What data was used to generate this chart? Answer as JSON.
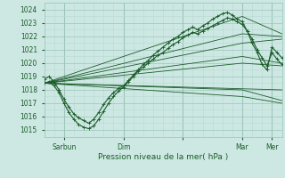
{
  "xlabel": "Pression niveau de la mer( hPa )",
  "bg_color": "#cde8e2",
  "grid_major_color": "#9dc4bc",
  "grid_minor_color": "#b8d8d2",
  "line_color": "#1a5c2a",
  "ylim": [
    1014.5,
    1024.5
  ],
  "xlim": [
    0,
    96
  ],
  "ytick_positions": [
    1015,
    1016,
    1017,
    1018,
    1019,
    1020,
    1021,
    1022,
    1023,
    1024
  ],
  "xtick_positions": [
    8,
    32,
    56,
    80,
    92
  ],
  "xtick_labels": [
    "Sarbun",
    "Dim",
    "",
    "Mar",
    "Mer"
  ],
  "day_vlines": [
    8,
    32,
    56,
    80,
    92
  ],
  "straight_lines": [
    {
      "x": [
        0,
        80,
        96
      ],
      "y": [
        1018.5,
        1023.5,
        1022.2
      ]
    },
    {
      "x": [
        0,
        80,
        96
      ],
      "y": [
        1018.5,
        1022.2,
        1022.0
      ]
    },
    {
      "x": [
        0,
        80,
        96
      ],
      "y": [
        1018.5,
        1021.5,
        1021.8
      ]
    },
    {
      "x": [
        0,
        80,
        96
      ],
      "y": [
        1018.5,
        1020.5,
        1020.0
      ]
    },
    {
      "x": [
        0,
        80,
        96
      ],
      "y": [
        1018.5,
        1020.0,
        1019.8
      ]
    },
    {
      "x": [
        0,
        96
      ],
      "y": [
        1018.5,
        1018.0
      ]
    },
    {
      "x": [
        0,
        80,
        96
      ],
      "y": [
        1018.5,
        1018.0,
        1017.2
      ]
    },
    {
      "x": [
        0,
        80,
        96
      ],
      "y": [
        1018.5,
        1017.5,
        1017.0
      ]
    }
  ],
  "squiggly1_x": [
    0,
    2,
    4,
    6,
    8,
    10,
    12,
    14,
    16,
    18,
    20,
    22,
    24,
    26,
    28,
    30,
    32,
    34,
    36,
    38,
    40,
    42,
    44,
    46,
    48,
    50,
    52,
    54,
    56,
    58,
    60,
    62,
    64,
    66,
    68,
    70,
    72,
    74,
    76,
    78,
    80,
    82,
    84,
    86,
    88,
    90,
    92,
    94,
    96
  ],
  "squiggly1_y": [
    1018.5,
    1018.6,
    1018.3,
    1017.8,
    1017.0,
    1016.3,
    1015.8,
    1015.4,
    1015.2,
    1015.1,
    1015.3,
    1015.8,
    1016.4,
    1017.0,
    1017.5,
    1017.9,
    1018.2,
    1018.6,
    1019.0,
    1019.4,
    1019.7,
    1020.0,
    1020.3,
    1020.6,
    1020.8,
    1021.1,
    1021.4,
    1021.6,
    1021.9,
    1022.1,
    1022.3,
    1022.2,
    1022.4,
    1022.6,
    1022.8,
    1023.0,
    1023.2,
    1023.4,
    1023.3,
    1023.1,
    1022.9,
    1022.4,
    1021.8,
    1021.0,
    1020.4,
    1019.8,
    1020.8,
    1020.3,
    1019.9
  ],
  "squiggly2_x": [
    0,
    2,
    4,
    6,
    8,
    10,
    12,
    14,
    16,
    18,
    20,
    22,
    24,
    26,
    28,
    30,
    32,
    34,
    36,
    38,
    40,
    42,
    44,
    46,
    48,
    50,
    52,
    54,
    56,
    58,
    60,
    62,
    64,
    66,
    68,
    70,
    72,
    74,
    76,
    78,
    80,
    82,
    84,
    86,
    88,
    90,
    92,
    94,
    96
  ],
  "squiggly2_y": [
    1018.8,
    1019.0,
    1018.6,
    1018.0,
    1017.3,
    1016.7,
    1016.2,
    1015.9,
    1015.7,
    1015.5,
    1015.8,
    1016.3,
    1016.9,
    1017.4,
    1017.8,
    1018.1,
    1018.3,
    1018.7,
    1019.1,
    1019.5,
    1019.9,
    1020.2,
    1020.6,
    1020.9,
    1021.2,
    1021.5,
    1021.8,
    1022.0,
    1022.3,
    1022.5,
    1022.7,
    1022.5,
    1022.8,
    1023.0,
    1023.3,
    1023.5,
    1023.7,
    1023.8,
    1023.6,
    1023.3,
    1023.1,
    1022.4,
    1021.5,
    1020.8,
    1019.9,
    1019.5,
    1021.2,
    1020.8,
    1020.4
  ]
}
